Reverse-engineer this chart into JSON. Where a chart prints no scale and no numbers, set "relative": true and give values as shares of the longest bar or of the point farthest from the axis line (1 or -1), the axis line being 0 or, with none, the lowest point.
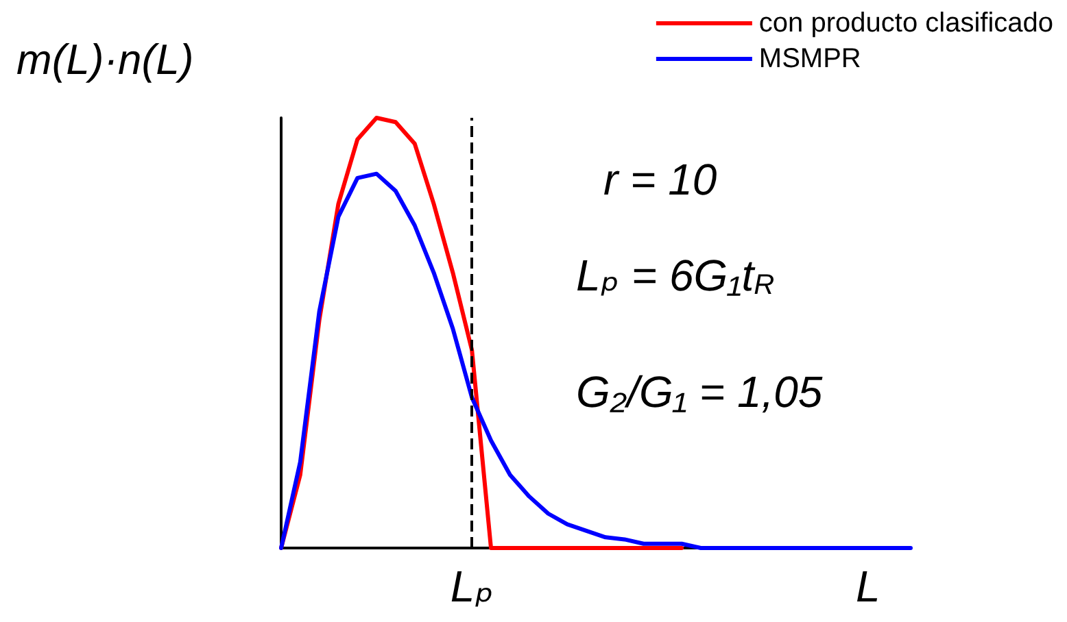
{
  "chart_data": {
    "type": "line",
    "relative": true,
    "ylabel": "m(L)·n(L)",
    "xlabel": "L",
    "categories": [
      null,
      null,
      null,
      null,
      null,
      null,
      null,
      null,
      null,
      null,
      null,
      null,
      null,
      null,
      null,
      null,
      null,
      null,
      null,
      null,
      null,
      null,
      null,
      null,
      null,
      null,
      null,
      null,
      null,
      null,
      null,
      null,
      null,
      null
    ],
    "series": [
      {
        "name": "con producto clasificado",
        "color": "#ff0000",
        "values": [
          0,
          0.17,
          0.53,
          0.8,
          0.95,
          1,
          0.99,
          0.94,
          0.8,
          0.64,
          0.46,
          0,
          0,
          0,
          0,
          0,
          0,
          0,
          0,
          0,
          0,
          0,
          null,
          null,
          null,
          null,
          null,
          null,
          null,
          null,
          null,
          null,
          null,
          null
        ]
      },
      {
        "name": "MSMPR",
        "color": "#0000ff",
        "values": [
          0,
          0.2,
          0.55,
          0.77,
          0.86,
          0.87,
          0.83,
          0.75,
          0.64,
          0.51,
          0.35,
          0.25,
          0.17,
          0.12,
          0.08,
          0.055,
          0.04,
          0.025,
          0.02,
          0.01,
          0.01,
          0.01,
          0,
          0,
          0,
          0,
          0,
          0,
          0,
          0,
          0,
          0,
          0,
          0
        ]
      }
    ],
    "annotations": [
      "Lₚ",
      "r = 10",
      "Lₚ = 6G₁t$_{R}$",
      "G₂/G₁ = 1,05"
    ],
    "legend": "top right",
    "marker": "none",
    "line_style": "solid",
    "grid": false
  }
}
